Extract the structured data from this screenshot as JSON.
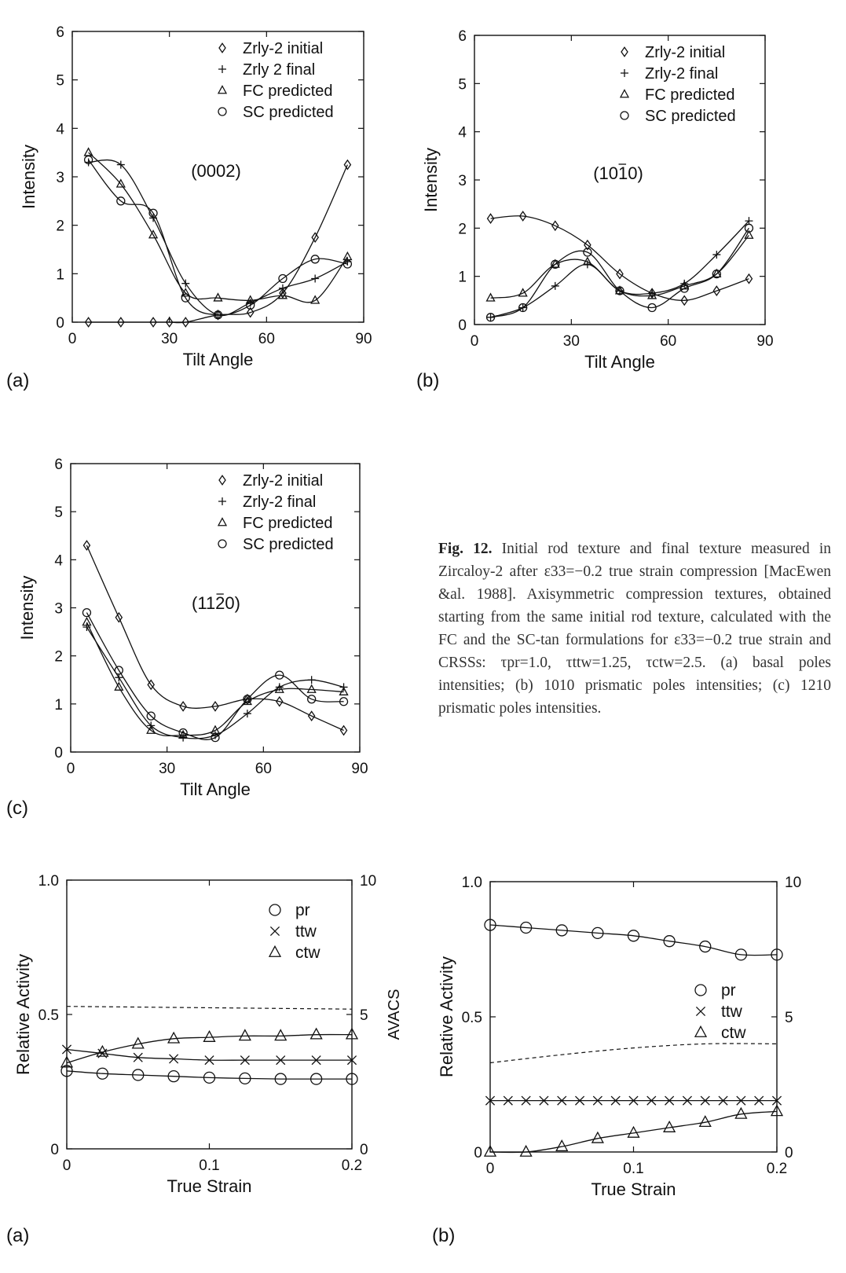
{
  "chart_data": [
    {
      "type": "line",
      "panel_label": "(a)",
      "plane_label": "(0002)",
      "xlabel": "Tilt Angle",
      "ylabel": "Intensity",
      "xlim": [
        0,
        90
      ],
      "ylim": [
        0,
        6
      ],
      "x_ticks": [
        "0",
        "30",
        "60",
        "90"
      ],
      "y_ticks": [
        "0",
        "1",
        "2",
        "3",
        "4",
        "5",
        "6"
      ],
      "legend": "top-right",
      "x": [
        5,
        15,
        25,
        30,
        35,
        45,
        55,
        65,
        75,
        85
      ],
      "series": [
        {
          "name": "Zrly-2 initial",
          "marker": "diamond",
          "values": [
            0,
            0,
            0,
            0,
            0,
            0.15,
            0.2,
            0.6,
            1.75,
            3.25
          ]
        },
        {
          "name": "Zrly 2 final",
          "marker": "plus",
          "values": [
            3.3,
            3.25,
            2.15,
            null,
            0.8,
            0.15,
            0.4,
            0.7,
            0.9,
            1.25
          ]
        },
        {
          "name": "FC predicted",
          "marker": "triangle",
          "values": [
            3.5,
            2.85,
            1.8,
            null,
            0.6,
            0.5,
            0.45,
            0.55,
            0.45,
            1.35
          ]
        },
        {
          "name": "SC predicted",
          "marker": "circle",
          "values": [
            3.35,
            2.5,
            2.25,
            null,
            0.5,
            0.15,
            0.35,
            0.9,
            1.3,
            1.2
          ]
        }
      ]
    },
    {
      "type": "line",
      "panel_label": "(b)",
      "plane_label": "(1010)",
      "xlabel": "Tilt Angle",
      "ylabel": "Intensity",
      "xlim": [
        0,
        90
      ],
      "ylim": [
        0,
        6
      ],
      "x_ticks": [
        "0",
        "30",
        "60",
        "90"
      ],
      "y_ticks": [
        "0",
        "1",
        "2",
        "3",
        "4",
        "5",
        "6"
      ],
      "legend": "top-right",
      "x": [
        5,
        15,
        25,
        35,
        45,
        55,
        65,
        75,
        85
      ],
      "series": [
        {
          "name": "Zrly-2 initial",
          "marker": "diamond",
          "values": [
            2.2,
            2.25,
            2.05,
            1.65,
            1.05,
            0.65,
            0.5,
            0.7,
            0.95
          ]
        },
        {
          "name": "Zrly-2 final",
          "marker": "plus",
          "values": [
            0.15,
            0.35,
            0.8,
            1.25,
            0.7,
            0.65,
            0.85,
            1.45,
            2.15
          ]
        },
        {
          "name": "FC predicted",
          "marker": "triangle",
          "values": [
            0.55,
            0.65,
            1.25,
            1.3,
            0.7,
            0.6,
            0.8,
            1.05,
            1.85
          ]
        },
        {
          "name": "SC predicted",
          "marker": "circle",
          "values": [
            0.15,
            0.35,
            1.25,
            1.5,
            0.7,
            0.35,
            0.75,
            1.05,
            2.0
          ]
        }
      ]
    },
    {
      "type": "line",
      "panel_label": "(c)",
      "plane_label": "(1120)",
      "xlabel": "Tilt Angle",
      "ylabel": "Intensity",
      "xlim": [
        0,
        90
      ],
      "ylim": [
        0,
        6
      ],
      "x_ticks": [
        "0",
        "30",
        "60",
        "90"
      ],
      "y_ticks": [
        "0",
        "1",
        "2",
        "3",
        "4",
        "5",
        "6"
      ],
      "legend": "top-right",
      "x": [
        5,
        15,
        25,
        35,
        45,
        55,
        65,
        75,
        85
      ],
      "series": [
        {
          "name": "Zrly-2 initial",
          "marker": "diamond",
          "values": [
            4.3,
            2.8,
            1.4,
            0.95,
            0.95,
            1.1,
            1.05,
            0.75,
            0.45
          ]
        },
        {
          "name": "Zrly-2 final",
          "marker": "plus",
          "values": [
            2.6,
            1.55,
            0.55,
            0.3,
            0.35,
            0.8,
            1.35,
            1.5,
            1.35
          ]
        },
        {
          "name": "FC predicted",
          "marker": "triangle",
          "values": [
            2.7,
            1.35,
            0.45,
            0.35,
            0.45,
            1.05,
            1.3,
            1.3,
            1.25
          ]
        },
        {
          "name": "SC predicted",
          "marker": "circle",
          "values": [
            2.9,
            1.7,
            0.75,
            0.4,
            0.3,
            1.1,
            1.6,
            1.1,
            1.05
          ]
        }
      ]
    },
    {
      "type": "line",
      "panel_label": "(a)",
      "xlabel": "True Strain",
      "ylabel": "Relative Activity",
      "y2label": "AVACS",
      "xlim": [
        0,
        0.2
      ],
      "ylim": [
        0,
        1.0
      ],
      "y2lim": [
        0,
        10
      ],
      "x_ticks": [
        "0",
        "0.1",
        "0.2"
      ],
      "y_ticks": [
        "0",
        "0.5",
        "1.0"
      ],
      "y2_ticks": [
        "0",
        "5",
        "10"
      ],
      "legend": "top-right",
      "x": [
        0,
        0.025,
        0.05,
        0.075,
        0.1,
        0.125,
        0.15,
        0.175,
        0.2
      ],
      "series": [
        {
          "name": "pr",
          "marker": "circle",
          "values": [
            0.29,
            0.28,
            0.275,
            0.27,
            0.265,
            0.262,
            0.26,
            0.26,
            0.26
          ]
        },
        {
          "name": "ttw",
          "marker": "cross",
          "values": [
            0.37,
            0.355,
            0.34,
            0.335,
            0.33,
            0.33,
            0.33,
            0.33,
            0.33
          ]
        },
        {
          "name": "ctw",
          "marker": "triangle",
          "values": [
            0.32,
            0.36,
            0.39,
            0.41,
            0.415,
            0.42,
            0.42,
            0.425,
            0.425
          ]
        }
      ],
      "avacs_dashed": {
        "x": [
          0,
          0.2
        ],
        "values": [
          5.3,
          5.2
        ]
      }
    },
    {
      "type": "line",
      "panel_label": "(b)",
      "xlabel": "True Strain",
      "ylabel": "Relative Activity",
      "y2label": "AVACS",
      "xlim": [
        0,
        0.2
      ],
      "ylim": [
        0,
        1.0
      ],
      "y2lim": [
        0,
        10
      ],
      "x_ticks": [
        "0",
        "0.1",
        "0.2"
      ],
      "y_ticks": [
        "0",
        "0.5",
        "1.0"
      ],
      "y2_ticks": [
        "0",
        "5",
        "10"
      ],
      "legend": "right",
      "x": [
        0,
        0.0125,
        0.025,
        0.0375,
        0.05,
        0.0625,
        0.075,
        0.0875,
        0.1,
        0.1125,
        0.125,
        0.1375,
        0.15,
        0.1625,
        0.175,
        0.1875,
        0.2
      ],
      "series": [
        {
          "name": "pr",
          "marker": "circle",
          "values": [
            0.84,
            null,
            0.83,
            null,
            0.82,
            null,
            0.81,
            null,
            0.8,
            null,
            0.78,
            null,
            0.76,
            null,
            0.73,
            null,
            0.73
          ]
        },
        {
          "name": "ttw",
          "marker": "cross",
          "values": [
            0.19,
            0.19,
            0.19,
            0.19,
            0.19,
            0.19,
            0.19,
            0.19,
            0.19,
            0.19,
            0.19,
            0.19,
            0.19,
            0.19,
            0.19,
            0.19,
            0.19
          ]
        },
        {
          "name": "ctw",
          "marker": "triangle",
          "values": [
            0.0,
            null,
            0.0,
            null,
            0.02,
            null,
            0.05,
            null,
            0.07,
            null,
            0.09,
            null,
            0.11,
            null,
            0.14,
            null,
            0.15
          ]
        }
      ],
      "avacs_dashed": {
        "x": [
          0,
          0.05,
          0.1,
          0.15,
          0.2
        ],
        "values": [
          3.3,
          3.6,
          3.85,
          4.0,
          4.0
        ]
      }
    }
  ],
  "caption": {
    "fig": "Fig. 12.",
    "text": "Initial rod texture and final texture measured in Zircaloy-2 after ε33=−0.2 true strain compression [MacEwen &al. 1988]. Axisymmetric compression textures, obtained starting from the same initial rod texture, calculated with the FC and the SC-tan formulations for ε33=−0.2 true strain and CRSSs: τpr=1.0, τttw=1.25, τctw=2.5. (a) basal poles intensities; (b) 1010 prismatic poles intensities; (c) 1210 prismatic poles intensities."
  }
}
